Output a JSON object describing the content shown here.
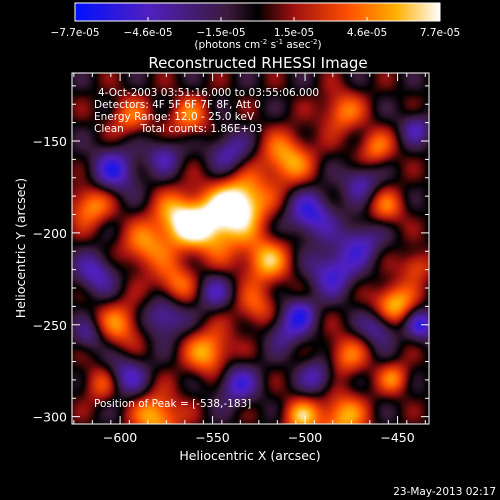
{
  "chart_data": {
    "type": "heatmap",
    "title": "Reconstructed RHESSI Image",
    "xlabel": "Heliocentric X (arcsec)",
    "ylabel": "Heliocentric Y (arcsec)",
    "xlim": [
      -626,
      -433
    ],
    "ylim": [
      -304,
      -113
    ],
    "xticks": [
      -600,
      -550,
      -500,
      -450
    ],
    "yticks": [
      -150,
      -200,
      -250,
      -300
    ],
    "colorbar": {
      "ticks": [
        "-7.7e-05",
        "-4.6e-05",
        "-1.5e-05",
        "1.5e-05",
        "4.6e-05",
        "7.7e-05"
      ],
      "label_parts": [
        "(photons cm",
        "-2",
        " s",
        "-1",
        " asec",
        "-2",
        ")"
      ],
      "range": [
        -7.7e-05,
        7.7e-05
      ]
    },
    "annotations": [
      "4-Oct-2003 03:51:16.000 to 03:55:06.000",
      "Detectors: 4F 5F 6F 7F 8F, Att 0",
      "Energy Range: 12.0 - 25.0 keV",
      "Clean     Total counts: 1.86E+03"
    ],
    "peak_label": "Position of Peak = [-538,-183]",
    "peak": [
      -538,
      -183
    ],
    "blobs": [
      [
        -534,
        -183,
        1.0,
        10
      ],
      [
        -549,
        -196,
        0.9,
        12
      ],
      [
        -568,
        -193,
        0.85,
        10
      ],
      [
        -587,
        -208,
        0.6,
        9
      ],
      [
        -616,
        -185,
        0.7,
        8
      ],
      [
        -510,
        -160,
        0.75,
        10
      ],
      [
        -521,
        -215,
        0.75,
        9
      ],
      [
        -480,
        -134,
        0.6,
        8
      ],
      [
        -462,
        -154,
        0.55,
        7
      ],
      [
        -456,
        -186,
        0.5,
        7
      ],
      [
        -440,
        -218,
        0.5,
        6
      ],
      [
        -452,
        -239,
        0.85,
        8
      ],
      [
        -478,
        -267,
        0.55,
        8
      ],
      [
        -552,
        -265,
        0.75,
        9
      ],
      [
        -526,
        -241,
        0.5,
        8
      ],
      [
        -600,
        -250,
        0.6,
        9
      ],
      [
        -610,
        -282,
        0.5,
        7
      ],
      [
        -580,
        -300,
        0.8,
        9
      ],
      [
        -480,
        -300,
        0.75,
        9
      ],
      [
        -563,
        -137,
        0.55,
        8
      ],
      [
        -595,
        -137,
        0.5,
        8
      ],
      [
        -452,
        -279,
        0.55,
        6
      ],
      [
        -502,
        -300,
        0.7,
        7
      ],
      [
        -570,
        -228,
        0.6,
        8
      ],
      [
        -603,
        -166,
        -0.7,
        9
      ],
      [
        -613,
        -222,
        -0.6,
        8
      ],
      [
        -576,
        -246,
        -0.65,
        8
      ],
      [
        -550,
        -232,
        -0.5,
        7
      ],
      [
        -497,
        -190,
        -0.75,
        9
      ],
      [
        -485,
        -221,
        -0.7,
        9
      ],
      [
        -470,
        -205,
        -0.6,
        8
      ],
      [
        -510,
        -252,
        -0.55,
        8
      ],
      [
        -597,
        -278,
        -0.6,
        8
      ],
      [
        -537,
        -282,
        -0.65,
        8
      ],
      [
        -493,
        -278,
        -0.55,
        7
      ],
      [
        -460,
        -251,
        -0.6,
        7
      ],
      [
        -470,
        -172,
        -0.55,
        7
      ],
      [
        -437,
        -250,
        -0.7,
        6
      ],
      [
        -541,
        -156,
        -0.55,
        8
      ],
      [
        -576,
        -158,
        -0.5,
        7
      ],
      [
        -502,
        -243,
        -0.5,
        6
      ],
      [
        -440,
        -143,
        -0.5,
        6
      ],
      [
        -617,
        -256,
        -0.45,
        6
      ]
    ]
  },
  "timestamp": "23-May-2013 02:17"
}
